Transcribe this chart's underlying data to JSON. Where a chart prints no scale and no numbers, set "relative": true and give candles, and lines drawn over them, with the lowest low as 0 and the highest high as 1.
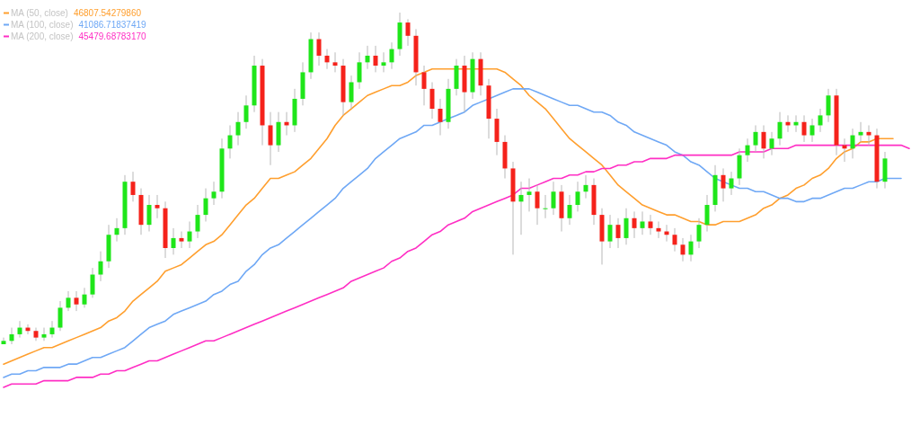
{
  "chart_data": {
    "type": "candlestick",
    "relative": true,
    "legend": "top left",
    "categories": [
      null,
      null,
      null,
      null,
      null,
      null,
      null,
      null,
      null,
      null,
      null,
      null,
      null,
      null,
      null,
      null,
      null,
      null,
      null,
      null,
      null,
      null,
      null,
      null,
      null,
      null,
      null,
      null,
      null,
      null,
      null,
      null,
      null,
      null,
      null,
      null,
      null,
      null,
      null,
      null,
      null,
      null,
      null,
      null,
      null,
      null,
      null,
      null,
      null,
      null,
      null,
      null,
      null,
      null,
      null,
      null,
      null,
      null,
      null,
      null,
      null,
      null,
      null,
      null,
      null,
      null,
      null,
      null,
      null,
      null,
      null,
      null,
      null,
      null,
      null,
      null,
      null,
      null,
      null,
      null,
      null,
      null,
      null,
      null,
      null,
      null,
      null,
      null,
      null,
      null,
      null,
      null,
      null,
      null,
      null,
      null,
      null,
      null,
      null,
      null,
      null,
      null,
      null,
      null,
      null,
      null,
      null,
      null,
      null,
      null,
      null,
      null,
      null
    ],
    "ohlc": [
      [
        0.0,
        0.02,
        0.0,
        0.01
      ],
      [
        0.01,
        0.05,
        0.0,
        0.03
      ],
      [
        0.03,
        0.07,
        0.02,
        0.05
      ],
      [
        0.05,
        0.06,
        0.03,
        0.04
      ],
      [
        0.04,
        0.05,
        0.01,
        0.02
      ],
      [
        0.02,
        0.05,
        0.01,
        0.03
      ],
      [
        0.03,
        0.07,
        0.02,
        0.05
      ],
      [
        0.05,
        0.13,
        0.04,
        0.11
      ],
      [
        0.11,
        0.16,
        0.1,
        0.14
      ],
      [
        0.14,
        0.16,
        0.1,
        0.12
      ],
      [
        0.12,
        0.17,
        0.11,
        0.15
      ],
      [
        0.15,
        0.23,
        0.14,
        0.21
      ],
      [
        0.21,
        0.28,
        0.19,
        0.25
      ],
      [
        0.25,
        0.36,
        0.23,
        0.33
      ],
      [
        0.33,
        0.38,
        0.31,
        0.35
      ],
      [
        0.35,
        0.51,
        0.33,
        0.49
      ],
      [
        0.49,
        0.52,
        0.43,
        0.45
      ],
      [
        0.45,
        0.47,
        0.33,
        0.36
      ],
      [
        0.36,
        0.45,
        0.34,
        0.42
      ],
      [
        0.42,
        0.45,
        0.38,
        0.41
      ],
      [
        0.41,
        0.43,
        0.26,
        0.29
      ],
      [
        0.29,
        0.35,
        0.27,
        0.32
      ],
      [
        0.32,
        0.34,
        0.29,
        0.31
      ],
      [
        0.31,
        0.37,
        0.29,
        0.34
      ],
      [
        0.34,
        0.42,
        0.32,
        0.39
      ],
      [
        0.39,
        0.47,
        0.37,
        0.44
      ],
      [
        0.44,
        0.49,
        0.42,
        0.46
      ],
      [
        0.46,
        0.62,
        0.44,
        0.59
      ],
      [
        0.59,
        0.66,
        0.56,
        0.63
      ],
      [
        0.63,
        0.7,
        0.6,
        0.67
      ],
      [
        0.67,
        0.75,
        0.65,
        0.72
      ],
      [
        0.72,
        0.87,
        0.7,
        0.84
      ],
      [
        0.84,
        0.86,
        0.6,
        0.66
      ],
      [
        0.66,
        0.7,
        0.54,
        0.6
      ],
      [
        0.6,
        0.7,
        0.58,
        0.67
      ],
      [
        0.67,
        0.7,
        0.63,
        0.66
      ],
      [
        0.66,
        0.77,
        0.64,
        0.74
      ],
      [
        0.74,
        0.85,
        0.72,
        0.82
      ],
      [
        0.82,
        0.94,
        0.8,
        0.92
      ],
      [
        0.92,
        0.94,
        0.84,
        0.87
      ],
      [
        0.87,
        0.89,
        0.83,
        0.85
      ],
      [
        0.85,
        0.88,
        0.82,
        0.84
      ],
      [
        0.84,
        0.86,
        0.69,
        0.73
      ],
      [
        0.73,
        0.81,
        0.71,
        0.79
      ],
      [
        0.79,
        0.88,
        0.77,
        0.85
      ],
      [
        0.85,
        0.9,
        0.83,
        0.87
      ],
      [
        0.87,
        0.9,
        0.82,
        0.84
      ],
      [
        0.84,
        0.88,
        0.82,
        0.85
      ],
      [
        0.85,
        0.91,
        0.83,
        0.89
      ],
      [
        0.89,
        1.0,
        0.87,
        0.97
      ],
      [
        0.97,
        0.98,
        0.9,
        0.93
      ],
      [
        0.93,
        0.95,
        0.78,
        0.82
      ],
      [
        0.82,
        0.84,
        0.72,
        0.77
      ],
      [
        0.77,
        0.79,
        0.68,
        0.71
      ],
      [
        0.71,
        0.74,
        0.63,
        0.67
      ],
      [
        0.67,
        0.8,
        0.65,
        0.77
      ],
      [
        0.77,
        0.86,
        0.75,
        0.84
      ],
      [
        0.84,
        0.87,
        0.7,
        0.76
      ],
      [
        0.76,
        0.88,
        0.74,
        0.86
      ],
      [
        0.86,
        0.88,
        0.75,
        0.78
      ],
      [
        0.78,
        0.8,
        0.62,
        0.68
      ],
      [
        0.68,
        0.71,
        0.57,
        0.61
      ],
      [
        0.61,
        0.63,
        0.5,
        0.53
      ],
      [
        0.53,
        0.55,
        0.27,
        0.43
      ],
      [
        0.43,
        0.49,
        0.33,
        0.45
      ],
      [
        0.45,
        0.5,
        0.4,
        0.46
      ],
      [
        0.46,
        0.48,
        0.36,
        0.41
      ],
      [
        0.41,
        0.45,
        0.38,
        0.41
      ],
      [
        0.41,
        0.49,
        0.39,
        0.46
      ],
      [
        0.46,
        0.48,
        0.34,
        0.38
      ],
      [
        0.38,
        0.45,
        0.36,
        0.42
      ],
      [
        0.42,
        0.49,
        0.4,
        0.46
      ],
      [
        0.46,
        0.51,
        0.44,
        0.48
      ],
      [
        0.48,
        0.5,
        0.36,
        0.39
      ],
      [
        0.39,
        0.41,
        0.24,
        0.31
      ],
      [
        0.31,
        0.39,
        0.29,
        0.36
      ],
      [
        0.36,
        0.38,
        0.29,
        0.32
      ],
      [
        0.32,
        0.41,
        0.3,
        0.38
      ],
      [
        0.38,
        0.4,
        0.32,
        0.35
      ],
      [
        0.35,
        0.4,
        0.33,
        0.37
      ],
      [
        0.37,
        0.39,
        0.33,
        0.35
      ],
      [
        0.35,
        0.37,
        0.32,
        0.34
      ],
      [
        0.34,
        0.36,
        0.31,
        0.33
      ],
      [
        0.33,
        0.35,
        0.28,
        0.3
      ],
      [
        0.3,
        0.32,
        0.25,
        0.27
      ],
      [
        0.27,
        0.33,
        0.25,
        0.31
      ],
      [
        0.31,
        0.38,
        0.29,
        0.36
      ],
      [
        0.36,
        0.45,
        0.34,
        0.42
      ],
      [
        0.42,
        0.54,
        0.4,
        0.51
      ],
      [
        0.51,
        0.53,
        0.43,
        0.47
      ],
      [
        0.47,
        0.52,
        0.45,
        0.5
      ],
      [
        0.5,
        0.59,
        0.48,
        0.57
      ],
      [
        0.57,
        0.62,
        0.55,
        0.6
      ],
      [
        0.6,
        0.66,
        0.58,
        0.64
      ],
      [
        0.64,
        0.66,
        0.56,
        0.59
      ],
      [
        0.59,
        0.64,
        0.57,
        0.62
      ],
      [
        0.62,
        0.7,
        0.6,
        0.67
      ],
      [
        0.67,
        0.69,
        0.64,
        0.66
      ],
      [
        0.66,
        0.69,
        0.64,
        0.67
      ],
      [
        0.67,
        0.69,
        0.61,
        0.63
      ],
      [
        0.63,
        0.68,
        0.61,
        0.66
      ],
      [
        0.66,
        0.71,
        0.64,
        0.69
      ],
      [
        0.69,
        0.77,
        0.67,
        0.75
      ],
      [
        0.75,
        0.77,
        0.57,
        0.6
      ],
      [
        0.6,
        0.62,
        0.55,
        0.59
      ],
      [
        0.59,
        0.65,
        0.56,
        0.63
      ],
      [
        0.63,
        0.67,
        0.61,
        0.64
      ],
      [
        0.64,
        0.66,
        0.6,
        0.63
      ],
      [
        0.63,
        0.65,
        0.47,
        0.49
      ],
      [
        0.49,
        0.58,
        0.47,
        0.56
      ],
      null,
      null,
      null
    ],
    "series": [
      {
        "type": "line",
        "name": "MA (50, close)",
        "color": "#ff9f2e",
        "values": [
          -0.06,
          -0.05,
          -0.04,
          -0.03,
          -0.02,
          -0.01,
          -0.01,
          0.0,
          0.01,
          0.02,
          0.03,
          0.04,
          0.05,
          0.07,
          0.08,
          0.1,
          0.13,
          0.15,
          0.17,
          0.19,
          0.22,
          0.23,
          0.24,
          0.26,
          0.28,
          0.3,
          0.31,
          0.33,
          0.36,
          0.39,
          0.42,
          0.44,
          0.47,
          0.5,
          0.5,
          0.51,
          0.52,
          0.54,
          0.56,
          0.59,
          0.62,
          0.66,
          0.69,
          0.71,
          0.73,
          0.75,
          0.76,
          0.77,
          0.78,
          0.78,
          0.79,
          0.81,
          0.82,
          0.83,
          0.83,
          0.83,
          0.83,
          0.83,
          0.83,
          0.83,
          0.83,
          0.83,
          0.82,
          0.8,
          0.78,
          0.75,
          0.73,
          0.71,
          0.68,
          0.65,
          0.62,
          0.6,
          0.58,
          0.56,
          0.54,
          0.51,
          0.48,
          0.46,
          0.44,
          0.42,
          0.41,
          0.4,
          0.39,
          0.39,
          0.38,
          0.37,
          0.37,
          0.36,
          0.36,
          0.37,
          0.37,
          0.37,
          0.38,
          0.39,
          0.41,
          0.42,
          0.44,
          0.45,
          0.47,
          0.48,
          0.5,
          0.51,
          0.53,
          0.56,
          0.58,
          0.59,
          0.61,
          0.61,
          0.62,
          0.62,
          0.62,
          null,
          null
        ]
      },
      {
        "type": "line",
        "name": "MA (100, close)",
        "color": "#6fa8f5",
        "values": [
          -0.1,
          -0.09,
          -0.09,
          -0.08,
          -0.08,
          -0.07,
          -0.07,
          -0.07,
          -0.06,
          -0.06,
          -0.05,
          -0.04,
          -0.04,
          -0.03,
          -0.02,
          -0.01,
          0.01,
          0.03,
          0.05,
          0.06,
          0.07,
          0.09,
          0.1,
          0.11,
          0.12,
          0.13,
          0.15,
          0.16,
          0.18,
          0.19,
          0.22,
          0.24,
          0.27,
          0.29,
          0.3,
          0.32,
          0.34,
          0.36,
          0.38,
          0.4,
          0.42,
          0.44,
          0.47,
          0.49,
          0.51,
          0.53,
          0.56,
          0.58,
          0.6,
          0.62,
          0.63,
          0.64,
          0.66,
          0.66,
          0.67,
          0.68,
          0.69,
          0.7,
          0.72,
          0.73,
          0.74,
          0.75,
          0.76,
          0.77,
          0.77,
          0.77,
          0.76,
          0.75,
          0.74,
          0.73,
          0.72,
          0.72,
          0.71,
          0.7,
          0.7,
          0.69,
          0.67,
          0.66,
          0.64,
          0.63,
          0.62,
          0.61,
          0.6,
          0.58,
          0.57,
          0.55,
          0.54,
          0.52,
          0.5,
          0.49,
          0.48,
          0.47,
          0.47,
          0.46,
          0.46,
          0.45,
          0.44,
          0.44,
          0.43,
          0.43,
          0.44,
          0.44,
          0.45,
          0.46,
          0.47,
          0.47,
          0.48,
          0.49,
          0.49,
          0.5,
          0.5,
          0.5,
          null
        ]
      },
      {
        "type": "line",
        "name": "MA (200, close)",
        "color": "#ff2ec4",
        "values": [
          -0.13,
          -0.12,
          -0.12,
          -0.12,
          -0.12,
          -0.11,
          -0.11,
          -0.11,
          -0.11,
          -0.1,
          -0.1,
          -0.1,
          -0.09,
          -0.09,
          -0.08,
          -0.08,
          -0.07,
          -0.06,
          -0.05,
          -0.05,
          -0.04,
          -0.03,
          -0.02,
          -0.01,
          0.0,
          0.01,
          0.01,
          0.02,
          0.03,
          0.04,
          0.05,
          0.06,
          0.07,
          0.08,
          0.09,
          0.1,
          0.11,
          0.12,
          0.13,
          0.14,
          0.15,
          0.16,
          0.17,
          0.19,
          0.2,
          0.21,
          0.22,
          0.23,
          0.25,
          0.26,
          0.28,
          0.29,
          0.31,
          0.33,
          0.34,
          0.36,
          0.37,
          0.38,
          0.4,
          0.41,
          0.42,
          0.43,
          0.44,
          0.45,
          0.47,
          0.47,
          0.48,
          0.49,
          0.5,
          0.5,
          0.51,
          0.51,
          0.52,
          0.52,
          0.53,
          0.53,
          0.54,
          0.54,
          0.55,
          0.55,
          0.56,
          0.56,
          0.56,
          0.57,
          0.57,
          0.57,
          0.57,
          0.57,
          0.57,
          0.57,
          0.57,
          0.58,
          0.58,
          0.58,
          0.58,
          0.59,
          0.59,
          0.59,
          0.6,
          0.6,
          0.6,
          0.6,
          0.6,
          0.6,
          0.6,
          0.6,
          0.6,
          0.6,
          0.6,
          0.6,
          0.6,
          0.6,
          0.59
        ]
      }
    ],
    "annotations": [
      "46807.54279860",
      "41086.71837419",
      "45479.68783170"
    ]
  }
}
